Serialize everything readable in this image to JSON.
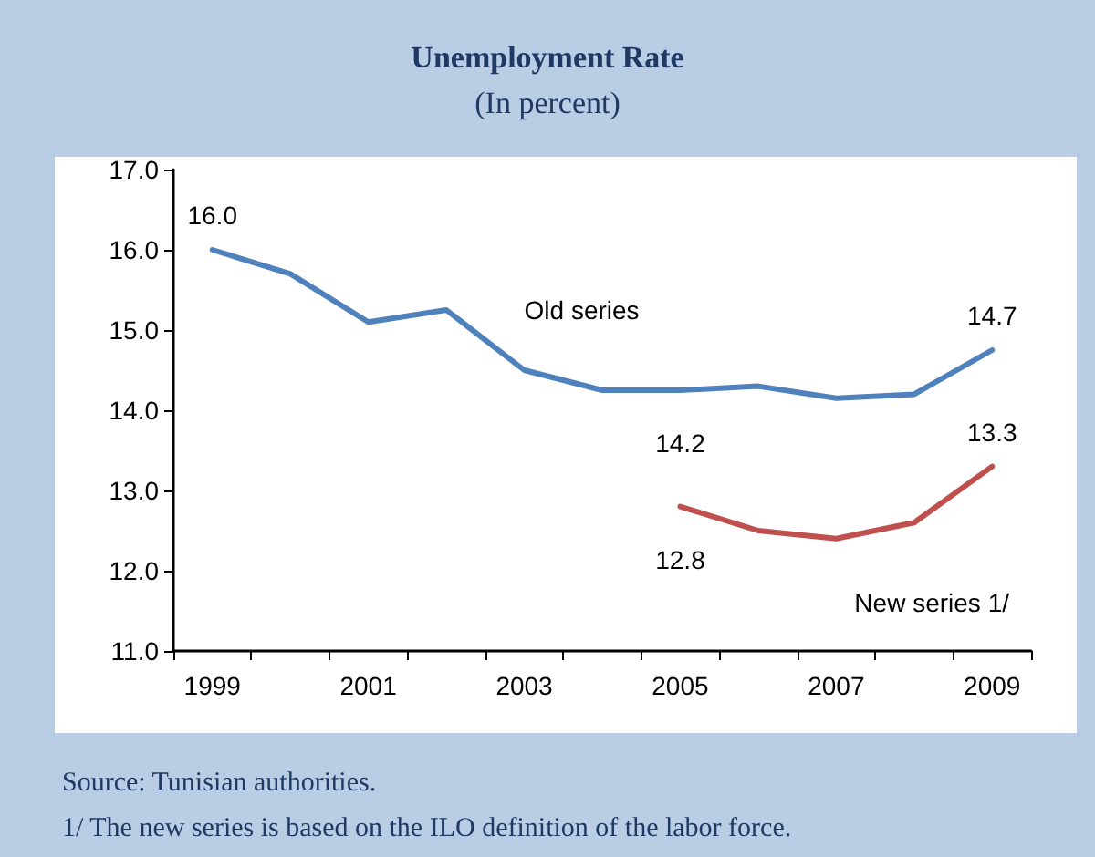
{
  "chart_data": {
    "type": "line",
    "title": "Unemployment Rate",
    "subtitle": "(In percent)",
    "categories": [
      "1999",
      null,
      "2001",
      null,
      "2003",
      null,
      "2005",
      null,
      "2007",
      null,
      "2009"
    ],
    "series": [
      {
        "name": "Old series",
        "color": "#4f81bd",
        "values": [
          16.0,
          15.7,
          15.1,
          15.25,
          14.5,
          14.25,
          14.25,
          14.3,
          14.15,
          14.2,
          14.75
        ],
        "value_labels": [
          "16.0",
          null,
          null,
          null,
          null,
          null,
          "14.2",
          null,
          null,
          null,
          "14.7"
        ]
      },
      {
        "name": "New series 1/",
        "color": "#c0504d",
        "values": [
          null,
          null,
          null,
          null,
          null,
          null,
          12.8,
          12.5,
          12.4,
          12.6,
          13.3
        ],
        "value_labels": [
          null,
          null,
          null,
          null,
          null,
          null,
          "12.8",
          null,
          null,
          null,
          "13.3"
        ]
      }
    ],
    "ylim": [
      11,
      17
    ],
    "yticks": [
      {
        "value": 11,
        "label": "11.0"
      },
      {
        "value": 12,
        "label": "12.0"
      },
      {
        "value": 13,
        "label": "13.0"
      },
      {
        "value": 14,
        "label": "14.0"
      },
      {
        "value": 15,
        "label": "15.0"
      },
      {
        "value": 16,
        "label": "16.0"
      },
      {
        "value": 17,
        "label": "17.0"
      }
    ],
    "grid": false,
    "legend": false,
    "marker": "none",
    "line_style": "solid",
    "annotations": [
      "Source: Tunisian authorities.",
      "1/ The new series is based on the ILO definition of the labor force."
    ]
  }
}
